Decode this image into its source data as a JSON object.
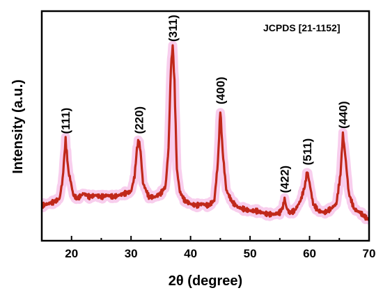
{
  "chart_data": {
    "type": "line",
    "xlabel": "2θ (degree)",
    "ylabel": "Intensity (a.u.)",
    "xlim": [
      15,
      70
    ],
    "ylim": [
      0,
      100
    ],
    "y_ticks_shown": false,
    "x_ticks": [
      20,
      30,
      40,
      50,
      60,
      70
    ],
    "x_tick_labels": [
      "20",
      "30",
      "40",
      "50",
      "60",
      "70"
    ],
    "annotation": "JCPDS [21-1152]",
    "colors": {
      "line": "#c0281a",
      "glow": "#f7c6ea",
      "axis": "#000000"
    },
    "peaks": [
      {
        "label": "(111)",
        "x": 19.0,
        "y": 47
      },
      {
        "label": "(220)",
        "x": 31.3,
        "y": 47
      },
      {
        "label": "(311)",
        "x": 37.0,
        "y": 101
      },
      {
        "label": "(400)",
        "x": 45.0,
        "y": 64
      },
      {
        "label": "(422)",
        "x": 55.8,
        "y": 13
      },
      {
        "label": "(511)",
        "x": 59.6,
        "y": 29
      },
      {
        "label": "(440)",
        "x": 65.6,
        "y": 50
      }
    ],
    "series": [
      {
        "x": [
          15,
          16,
          17,
          18,
          18.5,
          19.0,
          19.5,
          19.8,
          20.3,
          21,
          22,
          23,
          24,
          25,
          26,
          27,
          28,
          29,
          30,
          30.6,
          31.0,
          31.3,
          31.6,
          32,
          33,
          34,
          35,
          35.8,
          36.3,
          36.7,
          37.0,
          37.3,
          37.7,
          38.2,
          39,
          40,
          41,
          42,
          43,
          44,
          44.6,
          45.0,
          45.4,
          46,
          47,
          48,
          49,
          50,
          51,
          52,
          53,
          54,
          55,
          55.5,
          55.8,
          56.1,
          56.6,
          57.5,
          58.5,
          59.2,
          59.6,
          60.0,
          60.6,
          61.5,
          62.5,
          63.5,
          64.5,
          65.2,
          65.6,
          66.0,
          66.6,
          67.5,
          68.5,
          69.5,
          70
        ],
        "y": [
          9,
          10,
          11,
          13,
          24,
          47,
          28,
          24,
          15,
          13,
          16,
          14,
          15,
          14,
          15,
          14,
          15,
          16,
          17,
          26,
          42,
          47,
          40,
          22,
          14,
          14,
          16,
          20,
          42,
          88,
          101,
          80,
          30,
          17,
          12,
          10,
          9,
          10,
          9,
          12,
          34,
          64,
          40,
          18,
          11,
          8,
          7,
          6,
          6,
          5,
          4,
          4,
          5,
          8,
          13,
          8,
          5,
          6,
          12,
          20,
          29,
          22,
          10,
          6,
          5,
          7,
          10,
          27,
          50,
          38,
          16,
          7,
          5,
          2,
          1
        ]
      }
    ]
  }
}
